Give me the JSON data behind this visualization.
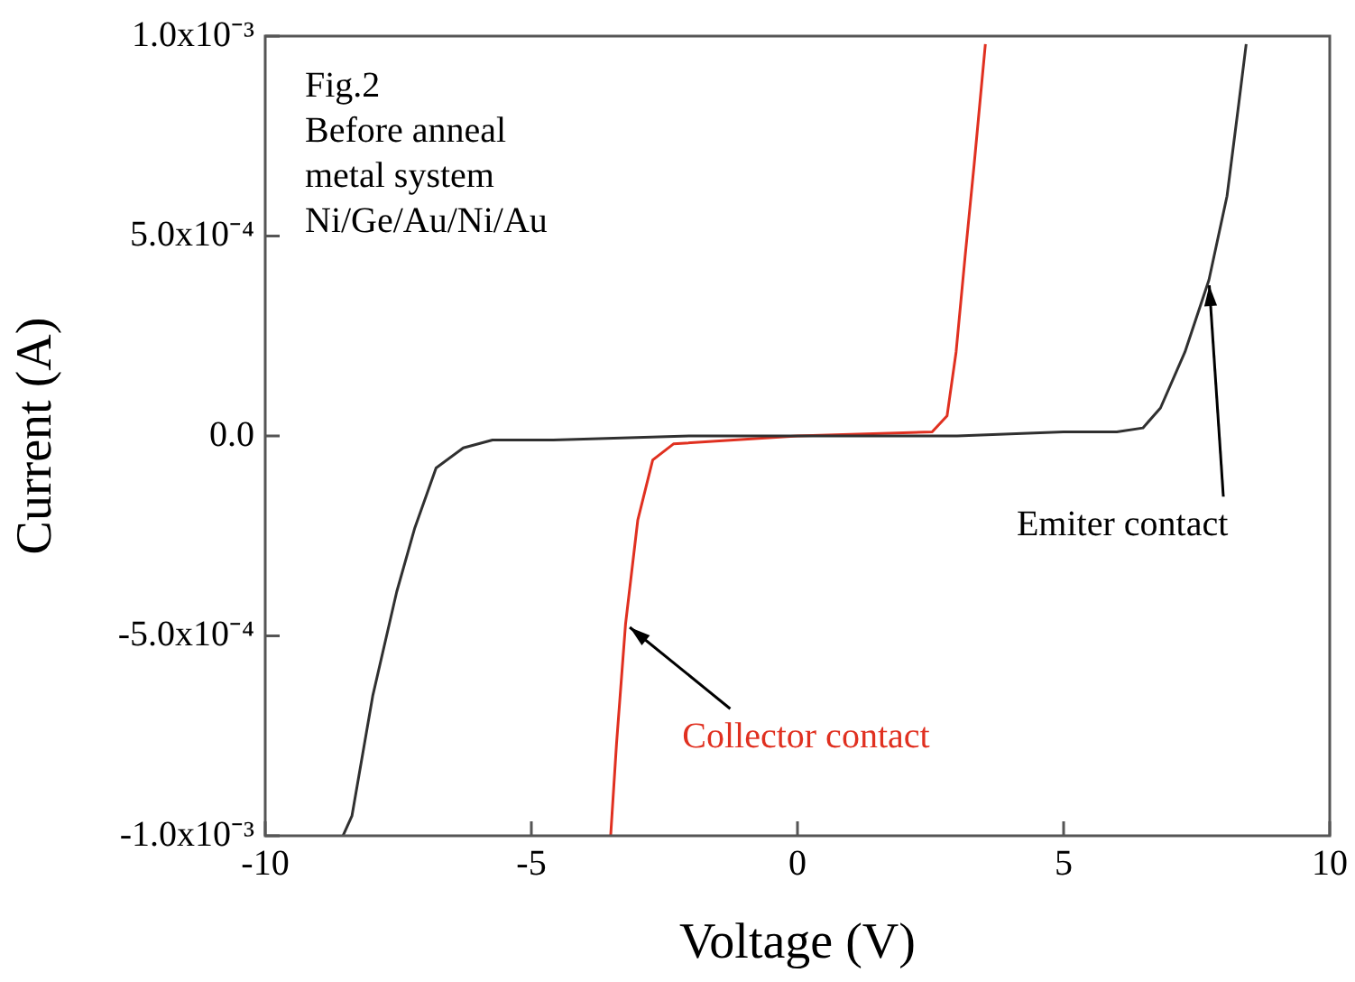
{
  "chart_data": {
    "type": "line",
    "xlabel": "Voltage (V)",
    "ylabel": "Current (A)",
    "xlim": [
      -10,
      10
    ],
    "xticks": [
      -10,
      -5,
      0,
      5,
      10
    ],
    "ylim": [
      -0.001,
      0.001
    ],
    "yticks": [
      {
        "value": -0.001,
        "label": "-1.0x10⁻³"
      },
      {
        "value": -0.0005,
        "label": "-5.0x10⁻⁴"
      },
      {
        "value": 0,
        "label": "0.0"
      },
      {
        "value": 0.0005,
        "label": "5.0x10⁻⁴"
      },
      {
        "value": 0.001,
        "label": "1.0x10⁻³"
      }
    ],
    "grid": false,
    "legend": false,
    "marker": "none",
    "line_style": "solid",
    "series": [
      {
        "color": "#303030",
        "x": [
          -8.54,
          -8.37,
          -7.98,
          -7.53,
          -7.19,
          -6.79,
          -6.28,
          -5.73,
          -4.59,
          -2,
          0,
          3,
          5,
          6,
          6.49,
          6.82,
          7.28,
          7.73,
          8.07,
          8.29,
          8.43
        ],
        "values": [
          -0.001,
          -0.00095,
          -0.00065,
          -0.00039,
          -0.00023,
          -8e-05,
          -3e-05,
          -1e-05,
          -1e-05,
          0,
          0,
          0,
          1e-05,
          1e-05,
          2e-05,
          7e-05,
          0.00021,
          0.00039,
          0.0006,
          0.00083,
          0.00098
        ]
      },
      {
        "color": "#e03020",
        "x": [
          -3.51,
          -3.4,
          -3.23,
          -3.0,
          -2.72,
          -2.33,
          -1.2,
          0,
          2.53,
          2.81,
          2.98,
          3.15,
          3.32,
          3.53
        ],
        "values": [
          -0.001,
          -0.00077,
          -0.00047,
          -0.00021,
          -6e-05,
          -2e-05,
          -1e-05,
          0,
          1e-05,
          5e-05,
          0.00021,
          0.00045,
          0.00068,
          0.00098
        ]
      }
    ],
    "annotations": [
      "Fig.2",
      "Before anneal",
      "metal system",
      "Ni/Ge/Au/Ni/Au",
      {
        "text": "Emiter contact",
        "x": 7.73,
        "y": 0.00039
      },
      {
        "text": "Collector contact",
        "x": -3.23,
        "y": -0.00047
      }
    ]
  }
}
